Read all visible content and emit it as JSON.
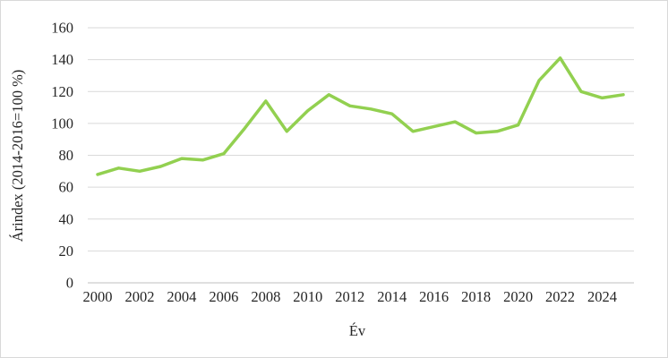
{
  "chart_data": {
    "type": "line",
    "title": "",
    "xlabel": "Év",
    "ylabel": "Árindex (2014-2016=100 %)",
    "x": [
      2000,
      2001,
      2002,
      2003,
      2004,
      2005,
      2006,
      2007,
      2008,
      2009,
      2010,
      2011,
      2012,
      2013,
      2014,
      2015,
      2016,
      2017,
      2018,
      2019,
      2020,
      2021,
      2022,
      2023,
      2024,
      2025
    ],
    "series": [
      {
        "color": "#92D050",
        "values": [
          68,
          72,
          70,
          73,
          78,
          77,
          81,
          97,
          114,
          95,
          108,
          118,
          111,
          109,
          106,
          95,
          98,
          101,
          94,
          95,
          99,
          127,
          141,
          120,
          116,
          118
        ]
      }
    ],
    "ylim": [
      0,
      160
    ],
    "yticks": [
      0,
      20,
      40,
      60,
      80,
      100,
      120,
      140,
      160
    ],
    "xticks": [
      2000,
      2002,
      2004,
      2006,
      2008,
      2010,
      2012,
      2014,
      2016,
      2018,
      2020,
      2022,
      2024
    ],
    "grid": "horizontal",
    "legend": "none"
  },
  "colors": {
    "line": "#92D050",
    "gridline": "#D9D9D9",
    "axis_line": "#BFBFBF",
    "tick_text": "#262626",
    "background": "#FFFFFF",
    "frame_border": "#D9D9D9"
  }
}
